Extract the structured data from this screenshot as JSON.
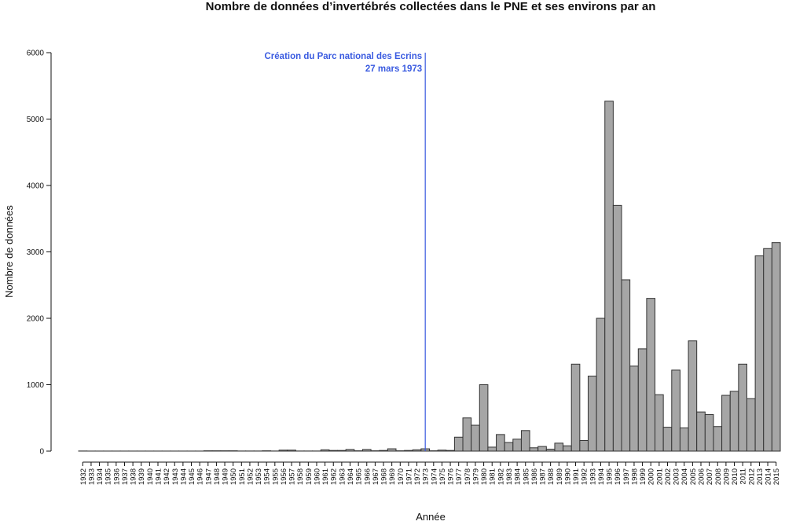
{
  "chart_data": {
    "type": "bar",
    "title": "Nombre de données d’invertébrés collectées dans le PNE et ses environs par an",
    "x_label": "Année",
    "y_label": "Nombre de données",
    "categories": [
      "1932",
      "1933",
      "1934",
      "1935",
      "1936",
      "1937",
      "1938",
      "1939",
      "1940",
      "1941",
      "1942",
      "1943",
      "1944",
      "1945",
      "1946",
      "1947",
      "1948",
      "1949",
      "1950",
      "1951",
      "1952",
      "1953",
      "1954",
      "1955",
      "1956",
      "1957",
      "1958",
      "1959",
      "1960",
      "1961",
      "1962",
      "1963",
      "1964",
      "1965",
      "1966",
      "1967",
      "1968",
      "1969",
      "1970",
      "1971",
      "1972",
      "1973",
      "1974",
      "1975",
      "1976",
      "1977",
      "1978",
      "1979",
      "1980",
      "1981",
      "1982",
      "1983",
      "1984",
      "1985",
      "1986",
      "1987",
      "1988",
      "1989",
      "1990",
      "1991",
      "1992",
      "1993",
      "1994",
      "1995",
      "1996",
      "1997",
      "1998",
      "1999",
      "2000",
      "2001",
      "2002",
      "2003",
      "2004",
      "2005",
      "2006",
      "2007",
      "2008",
      "2009",
      "2010",
      "2011",
      "2012",
      "2013",
      "2014",
      "2015"
    ],
    "values": [
      2,
      1,
      1,
      1,
      1,
      1,
      1,
      1,
      1,
      1,
      1,
      1,
      1,
      1,
      1,
      5,
      5,
      5,
      5,
      2,
      2,
      2,
      5,
      2,
      15,
      15,
      2,
      2,
      2,
      20,
      10,
      10,
      25,
      5,
      25,
      5,
      10,
      35,
      5,
      10,
      20,
      35,
      5,
      15,
      10,
      210,
      500,
      390,
      1000,
      60,
      250,
      130,
      180,
      310,
      50,
      70,
      30,
      120,
      80,
      1310,
      160,
      1130,
      2000,
      5270,
      3700,
      2580,
      1280,
      1540,
      2300,
      850,
      360,
      1220,
      350,
      1660,
      590,
      550,
      370,
      840,
      900,
      1310,
      790,
      2940,
      3050,
      3140
    ],
    "color": "#a6a6a6",
    "ylim": [
      0,
      6000
    ],
    "yticks": [
      0,
      1000,
      2000,
      3000,
      4000,
      5000,
      6000
    ],
    "annotation": {
      "lines": [
        "Création du Parc national des Ecrins",
        "27 mars 1973"
      ],
      "at": "1973",
      "color": "#3a5be0"
    }
  }
}
